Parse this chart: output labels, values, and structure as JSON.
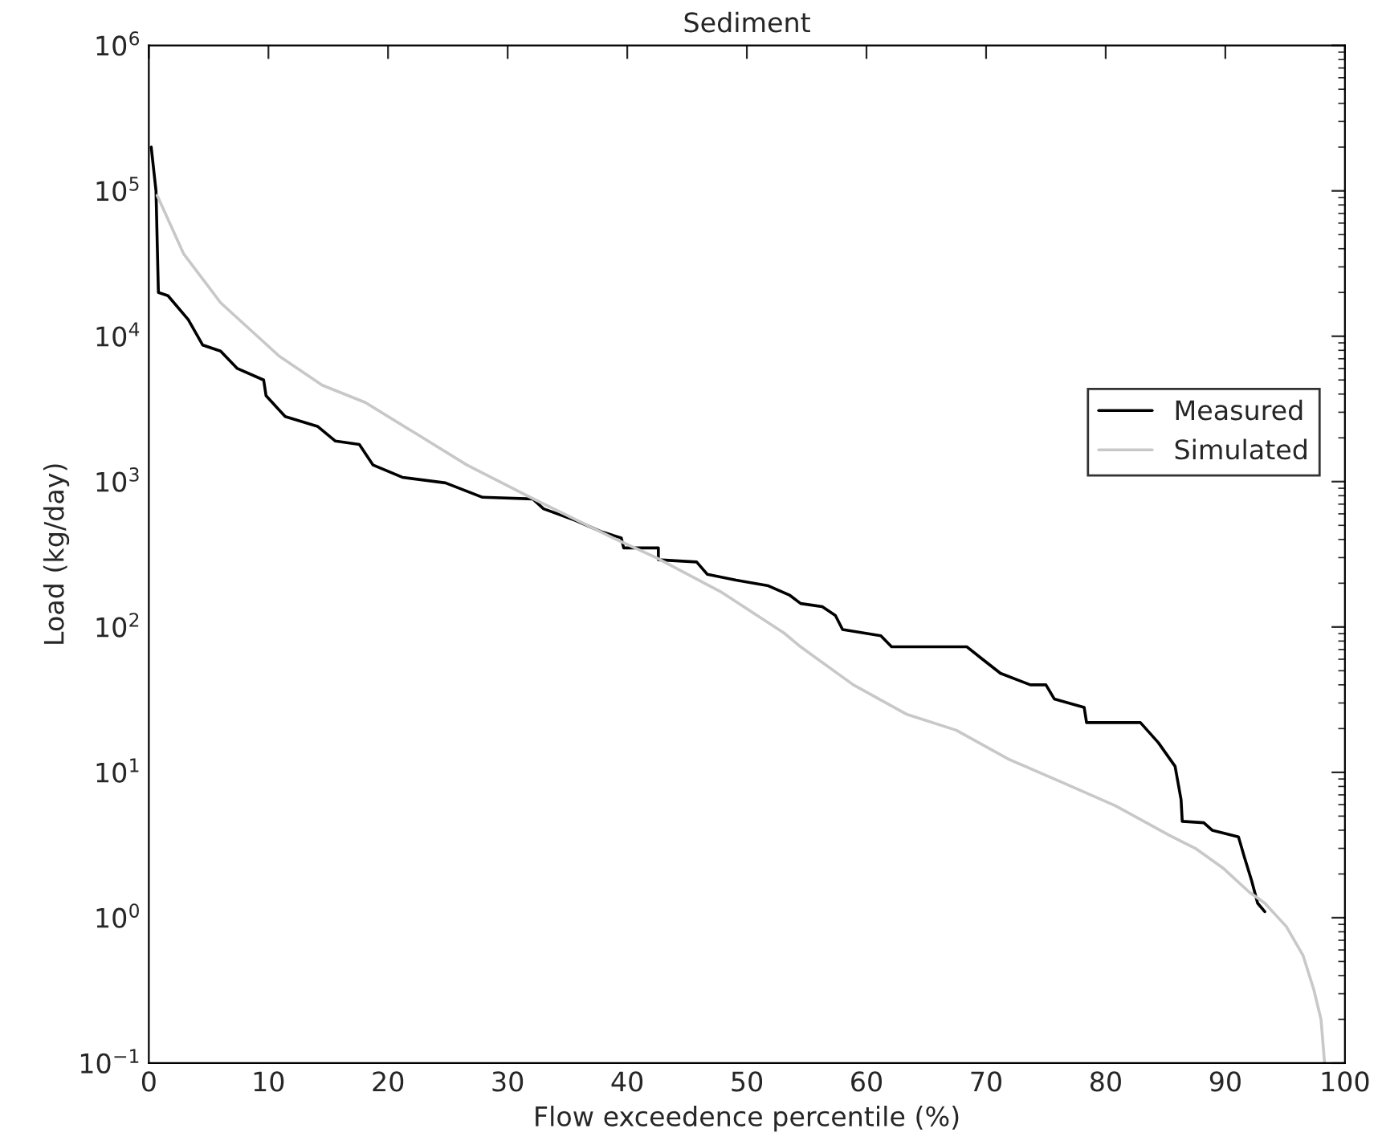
{
  "chart_data": {
    "type": "line",
    "title": "Sediment",
    "xlabel": "Flow exceedence percentile (%)",
    "ylabel": "Load (kg/day)",
    "log": "y",
    "grid": false,
    "legend": "right",
    "line_style": "solid",
    "marker": "none",
    "xlim": [
      0,
      100
    ],
    "xticks": [
      0,
      10,
      20,
      30,
      40,
      50,
      60,
      70,
      80,
      90,
      100
    ],
    "ylim": [
      0.1,
      1000000
    ],
    "yticks": [
      {
        "value": 0.1,
        "label": "10$^{−1}$"
      },
      {
        "value": 1,
        "label": "10$^{0}$"
      },
      {
        "value": 10,
        "label": "10$^{1}$"
      },
      {
        "value": 100,
        "label": "10$^{2}$"
      },
      {
        "value": 1000,
        "label": "10$^{3}$"
      },
      {
        "value": 10000,
        "label": "10$^{4}$"
      },
      {
        "value": 100000,
        "label": "10$^{5}$"
      },
      {
        "value": 1000000,
        "label": "10$^{6}$"
      }
    ],
    "series": [
      {
        "name": "Measured",
        "color": "#000000",
        "x": [
          0.2,
          0.6,
          0.8,
          1.6,
          3.3,
          4.5,
          6.0,
          7.4,
          9.6,
          9.8,
          11.4,
          14.1,
          15.6,
          17.6,
          18.75,
          21.2,
          24.8,
          27.9,
          32.1,
          33.0,
          35.7,
          37.9,
          39.5,
          39.7,
          42.6,
          42.6,
          45.8,
          46.7,
          49.1,
          51.8,
          53.6,
          54.5,
          56.3,
          57.4,
          58.0,
          61.2,
          62.1,
          65.6,
          68.4,
          69.7,
          71.2,
          73.7,
          75.0,
          75.7,
          78.2,
          78.4,
          82.9,
          84.4,
          85.8,
          86.3,
          86.4,
          88.2,
          88.9,
          91.1,
          91.6,
          92.2,
          92.7,
          93.3
        ],
        "values": [
          200000,
          100000,
          20000,
          19000,
          13000,
          8700,
          7900,
          6000,
          5000,
          3900,
          2800,
          2400,
          1900,
          1800,
          1300,
          1070,
          980,
          780,
          760,
          650,
          540,
          450,
          410,
          350,
          350,
          290,
          280,
          230,
          210,
          192,
          165,
          145,
          138,
          120,
          96,
          87,
          73,
          73,
          73,
          60,
          48,
          40,
          40,
          32,
          28,
          22,
          22,
          16,
          11,
          6.5,
          4.6,
          4.5,
          4.0,
          3.6,
          2.6,
          1.8,
          1.26,
          1.1
        ]
      },
      {
        "name": "Simulated",
        "color": "#c8c8c8",
        "x": [
          0.7,
          2.9,
          6.0,
          10.9,
          14.5,
          18.1,
          22.1,
          26.6,
          31.9,
          38.8,
          42.4,
          47.8,
          53.1,
          54.5,
          58.9,
          63.4,
          67.5,
          71.9,
          76.4,
          80.8,
          85.3,
          87.5,
          89.8,
          92.0,
          93.3,
          95.1,
          96.5,
          97.4,
          98.0,
          98.3
        ],
        "values": [
          93000,
          37000,
          17000,
          7300,
          4600,
          3500,
          2200,
          1300,
          780,
          410,
          300,
          175,
          91,
          73,
          40,
          25,
          19.5,
          12.3,
          8.5,
          5.9,
          3.7,
          3.0,
          2.2,
          1.5,
          1.26,
          0.87,
          0.55,
          0.32,
          0.2,
          0.1
        ]
      }
    ]
  }
}
